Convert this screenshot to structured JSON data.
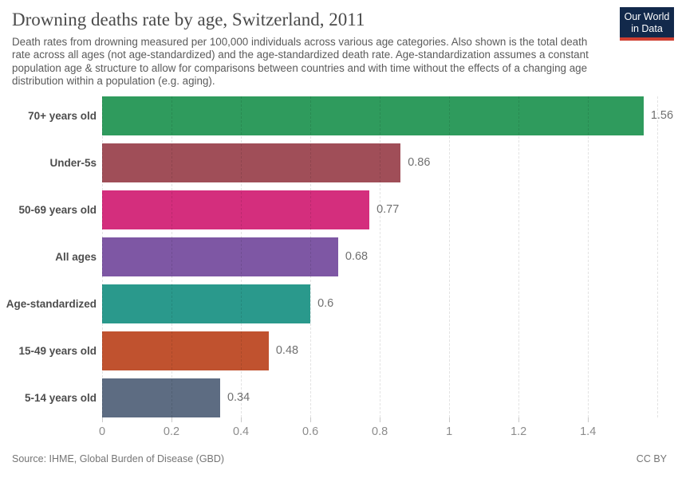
{
  "header": {
    "title": "Drowning deaths rate by age, Switzerland, 2011",
    "subtitle": "Death rates from drowning measured per 100,000 individuals across various age categories. Also shown is the total death rate across all ages (not age-standardized) and the age-standardized death rate. Age-standardization assumes a constant population age & structure to allow for comparisons between countries and with time without the effects of a changing age distribution within a population (e.g. aging)."
  },
  "logo": {
    "line1": "Our World",
    "line2": "in Data",
    "bg_color": "#12294b",
    "accent_color": "#cf3f31"
  },
  "chart_data": {
    "type": "bar",
    "orientation": "horizontal",
    "title": "Drowning deaths rate by age, Switzerland, 2011",
    "categories": [
      "70+ years old",
      "Under-5s",
      "50-69 years old",
      "All ages",
      "Age-standardized",
      "15-49 years old",
      "5-14 years old"
    ],
    "values": [
      1.56,
      0.86,
      0.77,
      0.68,
      0.6,
      0.48,
      0.34
    ],
    "value_labels": [
      "1.56",
      "0.86",
      "0.77",
      "0.68",
      "0.6",
      "0.48",
      "0.34"
    ],
    "bar_colors": [
      "#2f9b5d",
      "#a04e58",
      "#d42e7d",
      "#7e57a4",
      "#2a998c",
      "#c0522f",
      "#5d6c82"
    ],
    "xlabel": "",
    "ylabel": "",
    "xlim": [
      0,
      1.65
    ],
    "x_ticks": [
      {
        "value": 0,
        "label": "0"
      },
      {
        "value": 0.2,
        "label": "0.2"
      },
      {
        "value": 0.4,
        "label": "0.4"
      },
      {
        "value": 0.6,
        "label": "0.6"
      },
      {
        "value": 0.8,
        "label": "0.8"
      },
      {
        "value": 1,
        "label": "1"
      },
      {
        "value": 1.2,
        "label": "1.2"
      },
      {
        "value": 1.4,
        "label": "1.4"
      },
      {
        "value": 1.6,
        "label": ""
      }
    ],
    "grid": "dashed-vertical",
    "legend": "none"
  },
  "footer": {
    "source": "Source: IHME, Global Burden of Disease (GBD)",
    "license": "CC BY"
  }
}
